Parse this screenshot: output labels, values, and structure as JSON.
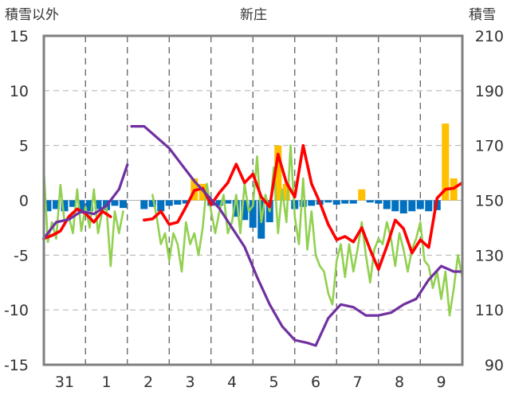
{
  "chart_data": {
    "type": "line",
    "title": "新庄",
    "ylabel_left": "積雪以外",
    "ylabel_right": "積雪",
    "ylim_left": [
      -15,
      15
    ],
    "ylim_right": [
      90,
      210
    ],
    "yticks_left": [
      "15",
      "10",
      "5",
      "0",
      "-5",
      "-10",
      "-15"
    ],
    "yticks_right": [
      "210",
      "190",
      "170",
      "150",
      "130",
      "110",
      "90"
    ],
    "x_day_labels": [
      "31",
      "1",
      "2",
      "3",
      "4",
      "5",
      "6",
      "7",
      "8",
      "9"
    ],
    "grid": true,
    "colors": {
      "temperature": "#ff0000",
      "green_series": "#92d050",
      "snow_depth": "#7030a0",
      "bars_positive": "#ffc000",
      "bars_negative": "#0070c0"
    },
    "series": [
      {
        "key": "red",
        "axis": "left",
        "x": [
          -0.5,
          -0.3,
          -0.1,
          0.1,
          0.3,
          0.5,
          0.7,
          0.9,
          1.1,
          1.3,
          1.5,
          1.7,
          1.9,
          2.1,
          2.3,
          2.5,
          2.7,
          2.9,
          3.1,
          3.3,
          3.5,
          3.7,
          3.9,
          4.1,
          4.3,
          4.5,
          4.7,
          4.9,
          5.1,
          5.3,
          5.5,
          5.7,
          5.9,
          6.1,
          6.3,
          6.5,
          6.7,
          6.9,
          7.1,
          7.3,
          7.5,
          7.7,
          7.9,
          8.1,
          8.3,
          8.5,
          8.7,
          8.9,
          9.1,
          9.3,
          9.5
        ],
        "values": [
          -3.5,
          -3.2,
          -2.8,
          -1.5,
          -0.8,
          -1.2,
          -2.0,
          -1.0,
          -1.5,
          null,
          null,
          null,
          -1.8,
          -1.7,
          -1.0,
          -2.2,
          -2.0,
          -0.6,
          0.9,
          1.1,
          -0.4,
          0.7,
          1.6,
          3.3,
          1.6,
          2.4,
          0.3,
          -0.6,
          4.2,
          1.6,
          0.3,
          5.0,
          1.5,
          -0.2,
          -2.2,
          -3.6,
          -3.3,
          -3.8,
          -2.5,
          -4.5,
          -6.3,
          -4.2,
          -1.8,
          -2.6,
          -4.8,
          -3.6,
          -4.3,
          0.2,
          1.0,
          1.1,
          1.6
        ]
      },
      {
        "key": "green",
        "axis": "left",
        "x": [
          -0.5,
          -0.4,
          -0.3,
          -0.2,
          -0.1,
          0.0,
          0.1,
          0.2,
          0.3,
          0.4,
          0.5,
          0.6,
          0.7,
          0.8,
          0.9,
          1.0,
          1.1,
          1.2,
          1.3,
          1.4,
          1.5,
          1.6,
          1.7,
          1.8,
          1.9,
          2.0,
          2.1,
          2.2,
          2.3,
          2.4,
          2.5,
          2.6,
          2.7,
          2.8,
          2.9,
          3.0,
          3.1,
          3.2,
          3.3,
          3.4,
          3.5,
          3.6,
          3.7,
          3.8,
          3.9,
          4.0,
          4.1,
          4.2,
          4.3,
          4.4,
          4.5,
          4.6,
          4.7,
          4.8,
          4.9,
          5.0,
          5.1,
          5.2,
          5.3,
          5.4,
          5.5,
          5.6,
          5.7,
          5.8,
          5.9,
          6.0,
          6.1,
          6.2,
          6.3,
          6.4,
          6.5,
          6.6,
          6.7,
          6.8,
          6.9,
          7.0,
          7.1,
          7.2,
          7.3,
          7.4,
          7.5,
          7.6,
          7.7,
          7.8,
          7.9,
          8.0,
          8.1,
          8.2,
          8.3,
          8.4,
          8.5,
          8.6,
          8.7,
          8.8,
          8.9,
          9.0,
          9.1,
          9.2,
          9.3,
          9.4,
          9.5
        ],
        "values": [
          3.0,
          -3.8,
          -2.0,
          -3.5,
          1.4,
          -2.0,
          -1.5,
          -3.0,
          1.0,
          -2.8,
          -0.6,
          -2.5,
          1.0,
          -3.0,
          -1.0,
          -0.5,
          -6.0,
          -1.0,
          -3.0,
          -1.0,
          null,
          null,
          null,
          null,
          null,
          null,
          0.5,
          -1.5,
          -4.0,
          -3.0,
          -5.5,
          -3.0,
          -4.0,
          -6.5,
          -2.0,
          -4.0,
          -3.0,
          -5.0,
          -2.5,
          1.5,
          -1.0,
          -3.0,
          -1.0,
          0.5,
          -3.0,
          -2.0,
          0.5,
          -3.0,
          1.5,
          -1.0,
          -0.5,
          4.0,
          -2.0,
          0.5,
          -1.0,
          3.0,
          -3.0,
          1.0,
          -2.0,
          5.0,
          -1.5,
          -4.0,
          2.0,
          -4.5,
          -1.0,
          -5.0,
          -6.0,
          -6.5,
          -8.5,
          -9.5,
          -5.5,
          -4.0,
          -7.0,
          -4.0,
          -6.5,
          -4.5,
          -2.0,
          -5.0,
          -7.5,
          -4.5,
          -3.5,
          -4.0,
          -2.0,
          -3.5,
          -6.0,
          -3.0,
          -4.5,
          -6.5,
          -4.5,
          -3.5,
          -2.0,
          -5.5,
          -6.0,
          -8.0,
          -6.5,
          -9.0,
          -6.5,
          -10.5,
          -8.0,
          -5.0,
          -7.0
        ]
      },
      {
        "key": "purple",
        "axis": "right",
        "x": [
          -0.5,
          -0.2,
          0.1,
          0.4,
          0.7,
          1.0,
          1.1,
          1.3,
          1.5,
          null,
          1.6,
          1.9,
          2.2,
          2.5,
          2.8,
          3.1,
          3.4,
          3.7,
          4.0,
          4.3,
          4.6,
          4.9,
          5.2,
          5.5,
          5.8,
          6.0,
          6.3,
          6.6,
          6.9,
          7.2,
          7.5,
          7.8,
          8.1,
          8.4,
          8.7,
          9.0,
          9.3,
          9.5
        ],
        "values": [
          136,
          142,
          143,
          146,
          145,
          148,
          150,
          154,
          163,
          null,
          177,
          177,
          173,
          169,
          163,
          157,
          152,
          147,
          140,
          133,
          122,
          112,
          104,
          99,
          98,
          97,
          107,
          112,
          111,
          108,
          108,
          109,
          112,
          114,
          121,
          126,
          124,
          124
        ]
      }
    ],
    "bars": {
      "axis": "left",
      "x": [
        -0.4,
        -0.2,
        0.0,
        0.2,
        0.4,
        0.6,
        0.8,
        1.0,
        1.2,
        1.4,
        1.9,
        2.1,
        2.3,
        2.5,
        2.7,
        2.9,
        3.1,
        3.3,
        3.5,
        3.7,
        3.9,
        4.1,
        4.3,
        4.5,
        4.7,
        4.9,
        5.1,
        5.3,
        5.5,
        5.7,
        5.9,
        6.1,
        6.3,
        6.5,
        6.7,
        6.9,
        7.1,
        7.3,
        7.5,
        7.7,
        7.9,
        8.1,
        8.3,
        8.5,
        8.7,
        8.9,
        9.1,
        9.3
      ],
      "values": [
        -1.0,
        -0.8,
        -1.0,
        -0.6,
        -1.2,
        -1.0,
        -0.8,
        -0.9,
        -0.5,
        -0.7,
        -0.8,
        -0.6,
        -1.0,
        -0.5,
        -0.4,
        -0.3,
        2.0,
        1.5,
        -0.5,
        -0.5,
        -0.3,
        -1.5,
        -1.8,
        -2.5,
        -3.5,
        -2.0,
        5.0,
        1.5,
        -0.8,
        -0.6,
        -0.5,
        -0.4,
        -0.2,
        -0.4,
        -0.3,
        -0.3,
        1.0,
        -0.2,
        -0.3,
        -0.8,
        -1.0,
        -1.2,
        -1.0,
        -0.8,
        -1.0,
        -0.9,
        7.0,
        2.0
      ]
    }
  }
}
